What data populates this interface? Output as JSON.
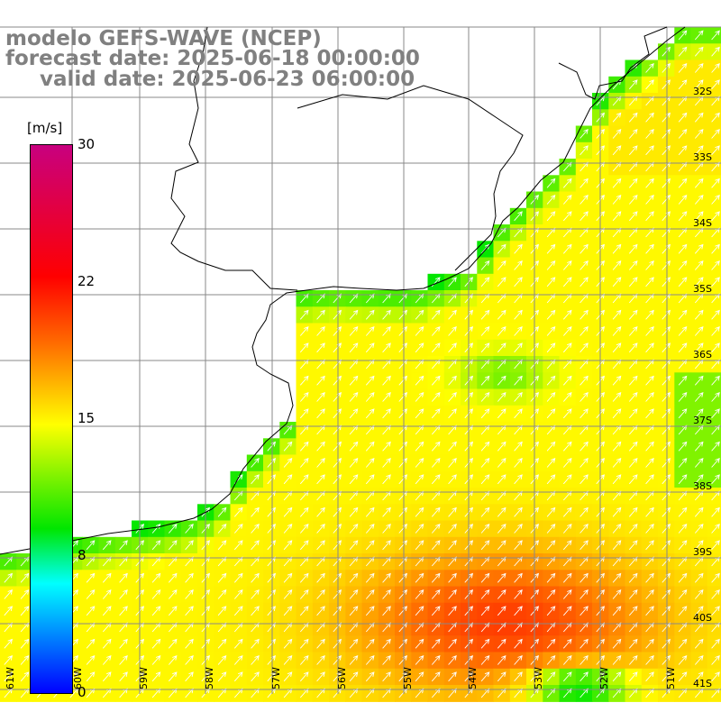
{
  "titles": {
    "line1": "modelo GEFS-WAVE (NCEP)",
    "line2": "forecast date: 2025-06-18 00:00:00",
    "line3": "valid date: 2025-06-23 06:00:00"
  },
  "colorbar": {
    "unit": "[m/s]",
    "ticks": [
      {
        "value": 30,
        "label": "30"
      },
      {
        "value": 22,
        "label": "22"
      },
      {
        "value": 15,
        "label": "15"
      },
      {
        "value": 8,
        "label": "8"
      },
      {
        "value": 0,
        "label": "0"
      }
    ],
    "colors": [
      "#c8007f",
      "#ff0000",
      "#ff6a00",
      "#ffff00",
      "#00e600",
      "#00ffff",
      "#0000ff"
    ]
  },
  "map": {
    "lon_range": [
      -61.5,
      -50.5
    ],
    "lat_range": [
      -41.3,
      -30.9
    ],
    "lat_labels": [
      "32S",
      "33S",
      "34S",
      "35S",
      "36S",
      "37S",
      "38S",
      "39S",
      "40S",
      "41S"
    ],
    "lon_labels": [
      "61W",
      "60W",
      "59W",
      "58W",
      "57W",
      "56W",
      "55W",
      "54W",
      "53W",
      "52W",
      "51W"
    ],
    "gridlines": true,
    "arrow_direction": "toward north-east"
  }
}
